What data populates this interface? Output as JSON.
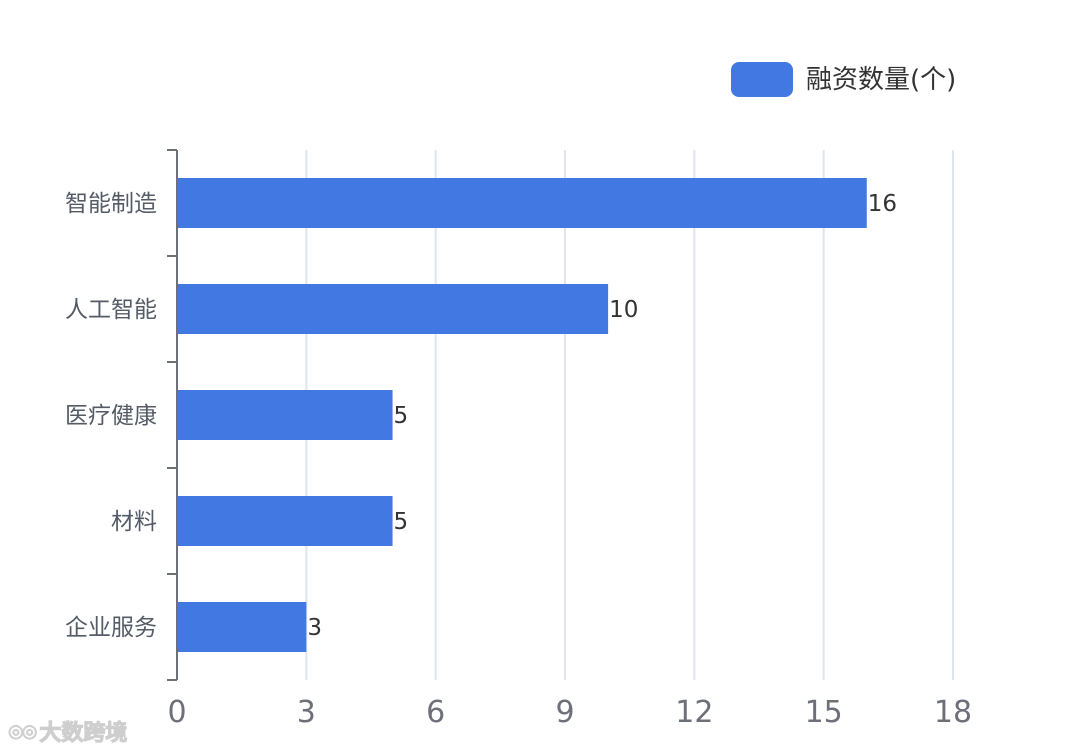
{
  "chart_data": {
    "type": "bar",
    "orientation": "horizontal",
    "categories": [
      "智能制造",
      "人工智能",
      "医疗健康",
      "材料",
      "企业服务"
    ],
    "series": [
      {
        "name": "融资数量(个)",
        "values": [
          16,
          10,
          5,
          5,
          3
        ],
        "color": "#4278e1"
      }
    ],
    "xlim": [
      0,
      18
    ],
    "x_ticks": [
      0,
      3,
      6,
      9,
      12,
      15,
      18
    ],
    "grid": true,
    "grid_color": "#dfe5ee",
    "axis_color": "#6e7079",
    "legend": "top-right",
    "data_labels": true
  },
  "watermark": {
    "icon": "eye-logo-icon",
    "text": "大数跨境"
  }
}
